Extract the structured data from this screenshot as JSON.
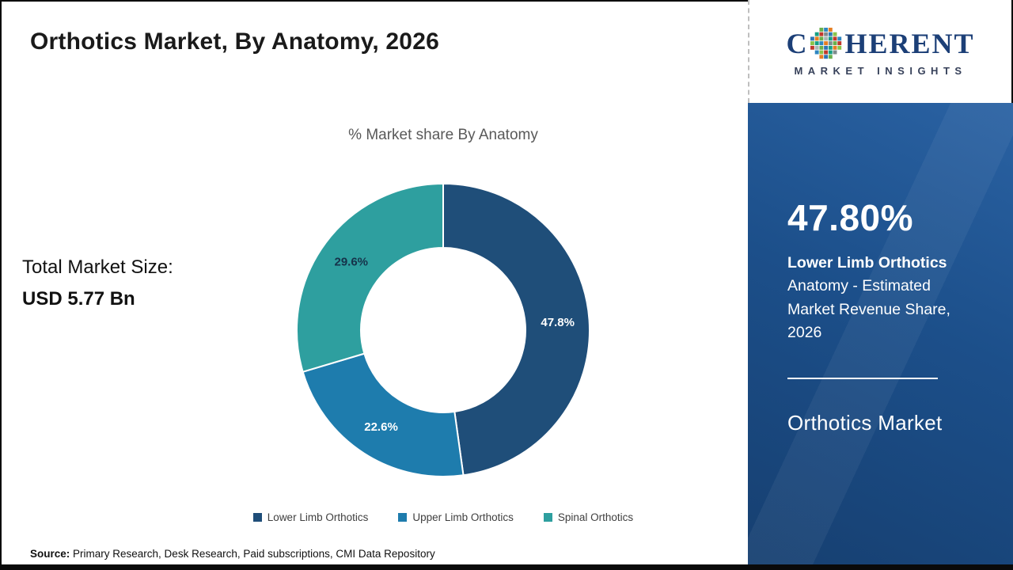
{
  "slide": {
    "title": "Orthotics Market, By Anatomy, 2026",
    "source": {
      "label": "Source:",
      "text": "Primary Research, Desk Research, Paid subscriptions, CMI Data Repository"
    }
  },
  "logo": {
    "word_prefix": "C",
    "word_suffix": "HERENT",
    "subtitle": "MARKET INSIGHTS",
    "text_color": "#1c3f77"
  },
  "left_panel": {
    "total_label": "Total Market Size:",
    "total_value": "USD 5.77 Bn"
  },
  "chart_data": {
    "type": "pie",
    "subtype": "donut",
    "title": "% Market share By Anatomy",
    "unit": "%",
    "start_angle_deg": 0,
    "direction": "clockwise",
    "legend_position": "bottom",
    "segments": [
      {
        "label": "Lower Limb Orthotics",
        "value": 47.8,
        "display": "47.8%",
        "color": "#1F4E79",
        "label_color": "#ffffff"
      },
      {
        "label": "Upper Limb Orthotics",
        "value": 22.6,
        "display": "22.6%",
        "color": "#1E7CAD",
        "label_color": "#ffffff"
      },
      {
        "label": "Spinal Orthotics",
        "value": 29.6,
        "display": "29.6%",
        "color": "#2E9F9F",
        "label_color": "#16324a"
      }
    ]
  },
  "right_panel": {
    "background_color": "#1C4F8A",
    "highlight_value": "47.80%",
    "highlight_bold": "Lower Limb Orthotics",
    "highlight_rest": "Anatomy - Estimated Market Revenue Share, 2026",
    "footer": "Orthotics Market"
  }
}
